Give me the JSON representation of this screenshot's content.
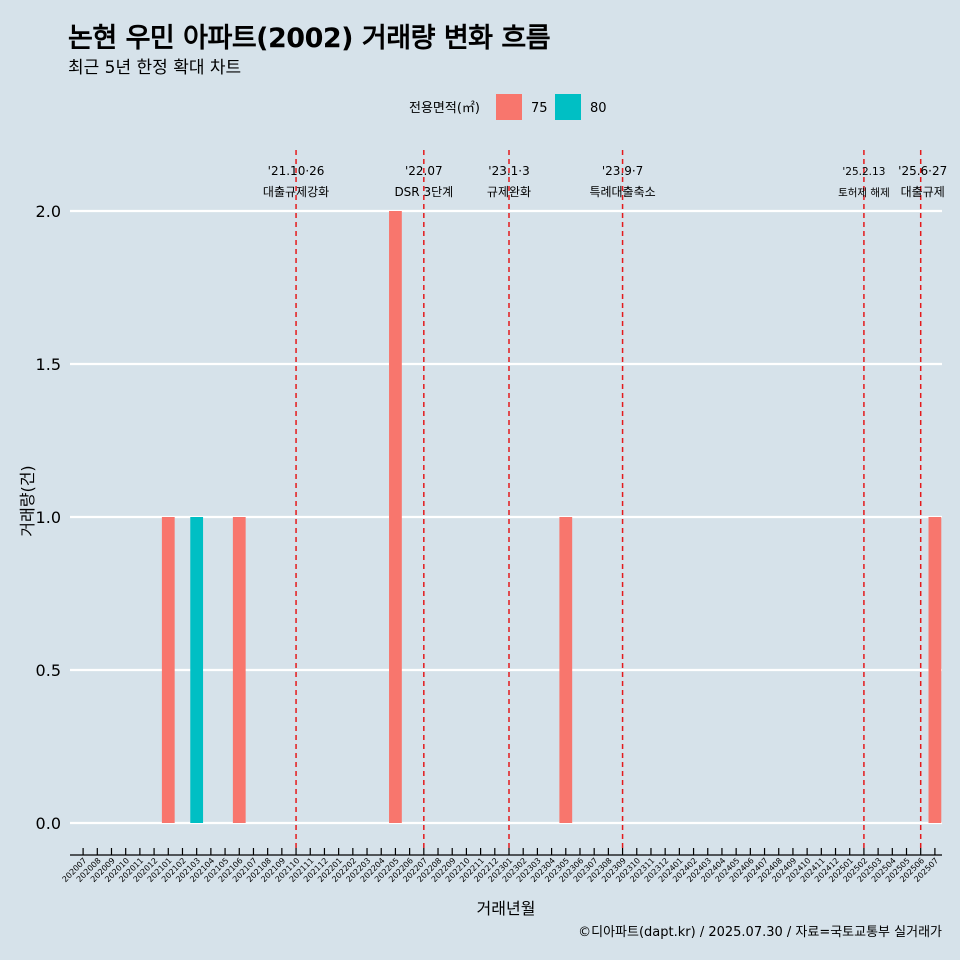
{
  "header": {
    "title": "논현 우민 아파트(2002) 거래량 변화 흐름",
    "subtitle": "최근 5년 한정 확대 차트"
  },
  "caption": "©디아파트(dapt.kr) / 2025.07.30 / 자료=국토교통부 실거래가",
  "legend": {
    "title": "전용면적(㎡)",
    "items": [
      {
        "label": "75",
        "color": "#f8766d"
      },
      {
        "label": "80",
        "color": "#00bfc4"
      }
    ]
  },
  "chart_data": {
    "type": "bar",
    "xlabel": "거래년월",
    "ylabel": "거래량(건)",
    "ylim": [
      0,
      2.2
    ],
    "yticks": [
      "0.0",
      "0.5",
      "1.0",
      "1.5",
      "2.0"
    ],
    "categories": [
      "202007",
      "202008",
      "202009",
      "202010",
      "202011",
      "202012",
      "202101",
      "202102",
      "202103",
      "202104",
      "202105",
      "202106",
      "202107",
      "202108",
      "202109",
      "202110",
      "202111",
      "202112",
      "202201",
      "202202",
      "202203",
      "202204",
      "202205",
      "202206",
      "202207",
      "202208",
      "202209",
      "202210",
      "202211",
      "202212",
      "202301",
      "202302",
      "202303",
      "202304",
      "202305",
      "202306",
      "202307",
      "202308",
      "202309",
      "202310",
      "202311",
      "202312",
      "202401",
      "202402",
      "202403",
      "202404",
      "202405",
      "202406",
      "202407",
      "202408",
      "202409",
      "202410",
      "202411",
      "202412",
      "202501",
      "202502",
      "202503",
      "202504",
      "202505",
      "202506",
      "202507"
    ],
    "series": [
      {
        "name": "75",
        "color": "#f8766d",
        "points": [
          [
            "202101",
            1
          ],
          [
            "202106",
            1
          ],
          [
            "202205",
            2
          ],
          [
            "202305",
            1
          ],
          [
            "202507",
            1
          ]
        ]
      },
      {
        "name": "80",
        "color": "#00bfc4",
        "points": [
          [
            "202103",
            1
          ]
        ]
      }
    ],
    "events": [
      {
        "x": "202110",
        "line1": "'21.10·26",
        "line2": "대출규제강화"
      },
      {
        "x": "202207",
        "line1": "'22.07",
        "line2": "DSR 3단계"
      },
      {
        "x": "202301",
        "line1": "'23.1·3",
        "line2": "규제완화"
      },
      {
        "x": "202309",
        "line1": "'23.9·7",
        "line2": "특례대출축소"
      },
      {
        "x": "202502",
        "line1": "'25.2.13",
        "line2": "토허제 해제",
        "small": true
      },
      {
        "x": "202506",
        "line1": "'25.6·27",
        "line2": "대출규제"
      }
    ],
    "event_line_color": "#e41a1c",
    "grid": true
  }
}
